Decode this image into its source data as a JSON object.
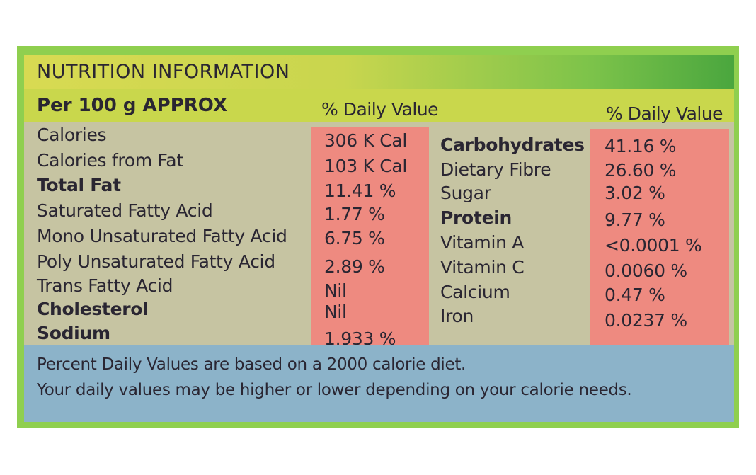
{
  "title": "NUTRITION INFORMATION",
  "serving": "Per 100 g APPROX",
  "daily_value_header_left": "% Daily Value",
  "daily_value_header_right": "% Daily Value",
  "left_nutrients": [
    {
      "name": "Calories",
      "value": "306 K Cal",
      "bold": false
    },
    {
      "name": "Calories from Fat",
      "value": "103 K Cal",
      "bold": false
    },
    {
      "name": "Total Fat",
      "value": "11.41 %",
      "bold": true
    },
    {
      "name": "Saturated Fatty Acid",
      "value": "1.77 %",
      "bold": false
    },
    {
      "name": "Mono Unsaturated Fatty Acid",
      "value": "6.75 %",
      "bold": false
    },
    {
      "name": "Poly Unsaturated Fatty Acid",
      "value": "2.89 %",
      "bold": false
    },
    {
      "name": "Trans Fatty Acid",
      "value": "Nil",
      "bold": false
    },
    {
      "name": "Cholesterol",
      "value": "Nil",
      "bold": true
    },
    {
      "name": "Sodium",
      "value": "1.933 %",
      "bold": true
    }
  ],
  "right_nutrients": [
    {
      "name": "Carbohydrates",
      "value": "41.16 %",
      "bold": true
    },
    {
      "name": "Dietary Fibre",
      "value": "26.60 %",
      "bold": false
    },
    {
      "name": "Sugar",
      "value": "3.02 %",
      "bold": false
    },
    {
      "name": "Protein",
      "value": "9.77 %",
      "bold": true
    },
    {
      "name": "Vitamin A",
      "value": "<0.0001 %",
      "bold": false
    },
    {
      "name": "Vitamin C",
      "value": "0.0060 %",
      "bold": false
    },
    {
      "name": "Calcium",
      "value": "0.47 %",
      "bold": false
    },
    {
      "name": "Iron",
      "value": "0.0237 %",
      "bold": false
    }
  ],
  "footnote": {
    "line1": "Percent Daily Values are based on a 2000 calorie diet.",
    "line2": "Your daily values may be higher or lower depending on your calorie needs."
  },
  "colors": {
    "panel_green": "#8fcf4f",
    "header_yellow": "#c9d74c",
    "body_grey": "#c6c4a2",
    "value_red": "#ee8a80",
    "footnote_blue": "#8cb3c9",
    "text": "#2a2632"
  }
}
